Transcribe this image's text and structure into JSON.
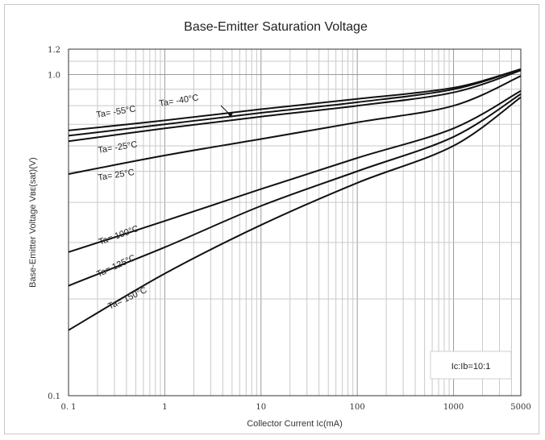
{
  "chart_data": {
    "type": "line",
    "title": "Base-Emitter Saturation Voltage",
    "xlabel": "Collector Current   Ic(mA)",
    "ylabel": "Base-Emitter Voltage   Vʙᴇ(sat)(V)",
    "x_scale": "log",
    "y_scale": "log",
    "xlim": [
      0.1,
      5000
    ],
    "ylim": [
      0.1,
      1.2
    ],
    "x_ticks": [
      0.1,
      1,
      10,
      100,
      1000,
      5000
    ],
    "x_tick_labels": [
      "0. 1",
      "1",
      "10",
      "100",
      "1000",
      "5000"
    ],
    "y_ticks": [
      0.1,
      1.0,
      1.2
    ],
    "y_tick_labels": [
      "0.1",
      "1.0",
      "1.2"
    ],
    "grid": true,
    "annotation": "Ic:Ib=10:1",
    "series": [
      {
        "name": "Ta= -55°C",
        "x": [
          0.1,
          1,
          10,
          100,
          1000,
          5000
        ],
        "y": [
          0.67,
          0.72,
          0.78,
          0.84,
          0.91,
          1.04
        ]
      },
      {
        "name": "Ta= -40°C",
        "x": [
          0.1,
          1,
          10,
          100,
          1000,
          5000
        ],
        "y": [
          0.645,
          0.7,
          0.76,
          0.82,
          0.9,
          1.04
        ]
      },
      {
        "name": "Ta= -25°C",
        "x": [
          0.1,
          1,
          10,
          100,
          1000,
          5000
        ],
        "y": [
          0.62,
          0.68,
          0.74,
          0.8,
          0.88,
          1.03
        ]
      },
      {
        "name": "Ta= 25°C",
        "x": [
          0.1,
          1,
          10,
          100,
          1000,
          5000
        ],
        "y": [
          0.49,
          0.56,
          0.63,
          0.71,
          0.8,
          0.99
        ]
      },
      {
        "name": "Ta= 100°C",
        "x": [
          0.1,
          1,
          10,
          100,
          1000,
          5000
        ],
        "y": [
          0.28,
          0.35,
          0.44,
          0.55,
          0.68,
          0.89
        ]
      },
      {
        "name": "Ta= 125°C",
        "x": [
          0.1,
          1,
          10,
          100,
          1000,
          5000
        ],
        "y": [
          0.22,
          0.29,
          0.39,
          0.5,
          0.64,
          0.87
        ]
      },
      {
        "name": "Ta= 150°C",
        "x": [
          0.1,
          1,
          10,
          100,
          1000,
          5000
        ],
        "y": [
          0.16,
          0.24,
          0.34,
          0.46,
          0.6,
          0.85
        ]
      }
    ],
    "color": "#111111"
  }
}
